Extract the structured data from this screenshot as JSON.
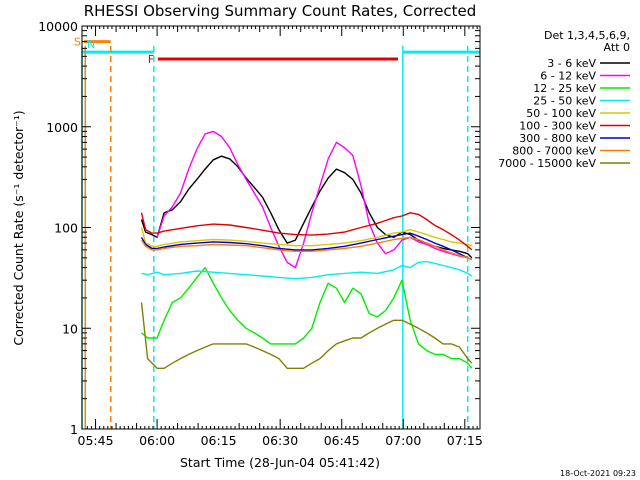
{
  "chart_data": {
    "type": "line",
    "title": "RHESSI Observing Summary Count Rates, Corrected",
    "xlabel": "Start Time (28-Jun-04 05:41:42)",
    "ylabel": "Corrected Count Rate (s⁻¹ detector⁻¹)",
    "yscale": "log",
    "ylim": [
      1,
      10000
    ],
    "xlim_minutes": [
      0,
      97
    ],
    "x_ticks": [
      {
        "label": "05:45",
        "min": 3.3
      },
      {
        "label": "06:00",
        "min": 18.3
      },
      {
        "label": "06:15",
        "min": 33.3
      },
      {
        "label": "06:30",
        "min": 48.3
      },
      {
        "label": "06:45",
        "min": 63.3
      },
      {
        "label": "07:00",
        "min": 78.3
      },
      {
        "label": "07:15",
        "min": 93.3
      }
    ],
    "y_ticks": [
      {
        "label": "1",
        "value": 1
      },
      {
        "label": "10",
        "value": 10
      },
      {
        "label": "100",
        "value": 100
      },
      {
        "label": "1000",
        "value": 1000
      },
      {
        "label": "10000",
        "value": 10000
      }
    ],
    "legend": {
      "header1": "Det 1,3,4,5,6,9,",
      "header2": "Att 0",
      "entries": [
        {
          "label": "3 - 6 keV",
          "color": "#000000"
        },
        {
          "label": "6 - 12 keV",
          "color": "#ff00ff"
        },
        {
          "label": "12 - 25 keV",
          "color": "#00ee00"
        },
        {
          "label": "25 - 50 keV",
          "color": "#00eeee"
        },
        {
          "label": "50 - 100 keV",
          "color": "#d8c800"
        },
        {
          "label": "100 - 300 keV",
          "color": "#e00000"
        },
        {
          "label": "300 - 800 keV",
          "color": "#0000cc"
        },
        {
          "label": "800 - 7000 keV",
          "color": "#ff8000"
        },
        {
          "label": "7000 - 15000 keV",
          "color": "#808000"
        }
      ]
    },
    "series": [
      {
        "name": "3 - 6 keV",
        "color": "#000000",
        "x": [
          14.5,
          15.5,
          17,
          18.3,
          20,
          22,
          24,
          26,
          28,
          30,
          32,
          34,
          36,
          38,
          40,
          42,
          44,
          46,
          48,
          50,
          52,
          54,
          56,
          58,
          60,
          62,
          64,
          66,
          68,
          70,
          72,
          74,
          76,
          78,
          80,
          82,
          84,
          86,
          88,
          90,
          92,
          94,
          95
        ],
        "y": [
          120,
          90,
          85,
          80,
          140,
          150,
          180,
          240,
          300,
          380,
          470,
          510,
          480,
          400,
          310,
          250,
          200,
          140,
          95,
          70,
          75,
          110,
          160,
          230,
          310,
          380,
          350,
          300,
          220,
          140,
          100,
          85,
          80,
          90,
          85,
          75,
          70,
          65,
          62,
          60,
          58,
          55,
          50
        ]
      },
      {
        "name": "6 - 12 keV",
        "color": "#ff00ff",
        "x": [
          18.3,
          20,
          22,
          24,
          26,
          28,
          30,
          32,
          34,
          36,
          38,
          40,
          42,
          44,
          46,
          48,
          50,
          52,
          54,
          56,
          58,
          60,
          62,
          64,
          66,
          68,
          70,
          72,
          74,
          76,
          78,
          80,
          82,
          84,
          86,
          88,
          90,
          92,
          94,
          95
        ],
        "y": [
          80,
          130,
          160,
          220,
          380,
          600,
          850,
          900,
          800,
          620,
          420,
          300,
          220,
          160,
          100,
          65,
          45,
          40,
          70,
          140,
          260,
          480,
          700,
          620,
          520,
          260,
          110,
          70,
          55,
          60,
          75,
          80,
          72,
          68,
          62,
          58,
          55,
          52,
          50,
          48
        ]
      },
      {
        "name": "12 - 25 keV",
        "color": "#00ee00",
        "x": [
          14.5,
          16,
          18.3,
          20,
          22,
          24,
          26,
          28,
          30,
          32,
          34,
          36,
          38,
          40,
          42,
          44,
          46,
          48,
          50,
          52,
          54,
          56,
          58,
          60,
          62,
          64,
          66,
          68,
          70,
          72,
          74,
          76,
          78,
          80,
          82,
          84,
          86,
          88,
          90,
          92,
          94,
          95
        ],
        "y": [
          9,
          8,
          8,
          12,
          18,
          20,
          25,
          32,
          40,
          28,
          20,
          15,
          12,
          10,
          9,
          8,
          7,
          7,
          7,
          7,
          8,
          10,
          18,
          28,
          25,
          18,
          25,
          22,
          14,
          13,
          15,
          20,
          30,
          12,
          7,
          6,
          5.5,
          5.5,
          5,
          5,
          4.5,
          4
        ]
      },
      {
        "name": "25 - 50 keV",
        "color": "#00eeee",
        "x": [
          14.5,
          16,
          18.3,
          20,
          24,
          28,
          32,
          36,
          40,
          44,
          48,
          52,
          56,
          60,
          64,
          68,
          72,
          76,
          78,
          80,
          82,
          84,
          86,
          88,
          90,
          92,
          94,
          95
        ],
        "y": [
          35,
          34,
          36,
          34,
          35,
          37,
          36,
          35,
          34,
          33,
          32,
          31,
          32,
          34,
          35,
          36,
          35,
          38,
          42,
          40,
          45,
          46,
          44,
          42,
          40,
          38,
          35,
          33
        ]
      },
      {
        "name": "50 - 100 keV",
        "color": "#d8c800",
        "x": [
          14.5,
          15.5,
          17,
          18.3,
          20,
          24,
          28,
          32,
          36,
          40,
          44,
          48,
          52,
          56,
          60,
          64,
          68,
          72,
          76,
          78,
          80,
          82,
          84,
          86,
          88,
          90,
          92,
          94,
          95
        ],
        "y": [
          100,
          70,
          65,
          65,
          68,
          72,
          74,
          76,
          75,
          73,
          70,
          68,
          66,
          66,
          68,
          70,
          74,
          80,
          88,
          90,
          95,
          90,
          85,
          80,
          76,
          72,
          70,
          68,
          66
        ]
      },
      {
        "name": "100 - 300 keV",
        "color": "#e00000",
        "x": [
          14.5,
          15.5,
          17,
          18.3,
          20,
          24,
          28,
          32,
          36,
          40,
          44,
          48,
          52,
          56,
          60,
          64,
          68,
          72,
          76,
          78,
          80,
          82,
          84,
          86,
          88,
          90,
          92,
          94,
          95
        ],
        "y": [
          140,
          95,
          88,
          88,
          92,
          98,
          104,
          108,
          106,
          100,
          94,
          88,
          85,
          84,
          86,
          90,
          100,
          110,
          125,
          130,
          140,
          135,
          120,
          105,
          95,
          85,
          75,
          65,
          60
        ]
      },
      {
        "name": "300 - 800 keV",
        "color": "#0000cc",
        "x": [
          14.5,
          15.5,
          17,
          18.3,
          20,
          24,
          28,
          32,
          36,
          40,
          44,
          48,
          52,
          56,
          60,
          64,
          68,
          72,
          76,
          78,
          80,
          82,
          84,
          86,
          88,
          90,
          92,
          94,
          95
        ],
        "y": [
          80,
          68,
          62,
          62,
          64,
          68,
          70,
          72,
          71,
          69,
          66,
          62,
          60,
          60,
          62,
          65,
          70,
          76,
          82,
          85,
          88,
          82,
          76,
          70,
          65,
          60,
          55,
          50,
          48
        ]
      },
      {
        "name": "800 - 7000 keV",
        "color": "#ff8000",
        "x": [
          14.5,
          15.5,
          17,
          18.3,
          20,
          24,
          28,
          32,
          36,
          40,
          44,
          48,
          52,
          56,
          60,
          64,
          68,
          72,
          76,
          78,
          80,
          82,
          84,
          86,
          88,
          90,
          92,
          94,
          95
        ],
        "y": [
          75,
          65,
          60,
          60,
          62,
          65,
          66,
          68,
          67,
          66,
          63,
          60,
          58,
          58,
          60,
          62,
          65,
          70,
          76,
          78,
          80,
          76,
          70,
          65,
          60,
          56,
          53,
          50,
          48
        ]
      },
      {
        "name": "7000 - 15000 keV",
        "color": "#808000",
        "x": [
          14.5,
          16,
          18.3,
          20,
          22,
          24,
          26,
          28,
          30,
          32,
          34,
          36,
          38,
          40,
          42,
          44,
          46,
          48,
          50,
          52,
          54,
          56,
          58,
          60,
          62,
          64,
          66,
          68,
          70,
          72,
          74,
          76,
          78,
          80,
          82,
          84,
          86,
          88,
          90,
          92,
          94,
          95
        ],
        "y": [
          18,
          5,
          4,
          4,
          4.5,
          5,
          5.5,
          6,
          6.5,
          7,
          7,
          7,
          7,
          7,
          6.5,
          6,
          5.5,
          5,
          4,
          4,
          4,
          4.5,
          5,
          6,
          7,
          7.5,
          8,
          8,
          9,
          10,
          11,
          12,
          12,
          11,
          10,
          9,
          8,
          7,
          7,
          6.5,
          5,
          4.5
        ]
      }
    ],
    "intervals": [
      {
        "flag": "S",
        "color": "#ff8000",
        "start_min": 0.5,
        "end_min": 7.0,
        "level": 7000
      },
      {
        "flag": "N",
        "color": "#00eeee",
        "start_min": 0.0,
        "end_min": 17.5,
        "level": 5500
      },
      {
        "flag": "F",
        "color": "#e00000",
        "start_min": 18.5,
        "end_min": 77.0,
        "level": 4700
      },
      {
        "flag": "",
        "color": "#00eeee",
        "start_min": 78.2,
        "end_min": 97.0,
        "level": 5500
      }
    ],
    "vlines": [
      {
        "color": "#00eeee",
        "min": 0.0,
        "style": "solid"
      },
      {
        "color": "#ff8000",
        "min": 0.8,
        "style": "solid"
      },
      {
        "color": "#ff8000",
        "min": 7.0,
        "style": "dashed"
      },
      {
        "color": "#00eeee",
        "min": 17.5,
        "style": "dashed"
      },
      {
        "color": "#00eeee",
        "min": 78.2,
        "style": "solid"
      },
      {
        "color": "#00eeee",
        "min": 94.0,
        "style": "dashed"
      }
    ]
  },
  "footer": {
    "timestamp": "18-Oct-2021 09:23"
  }
}
